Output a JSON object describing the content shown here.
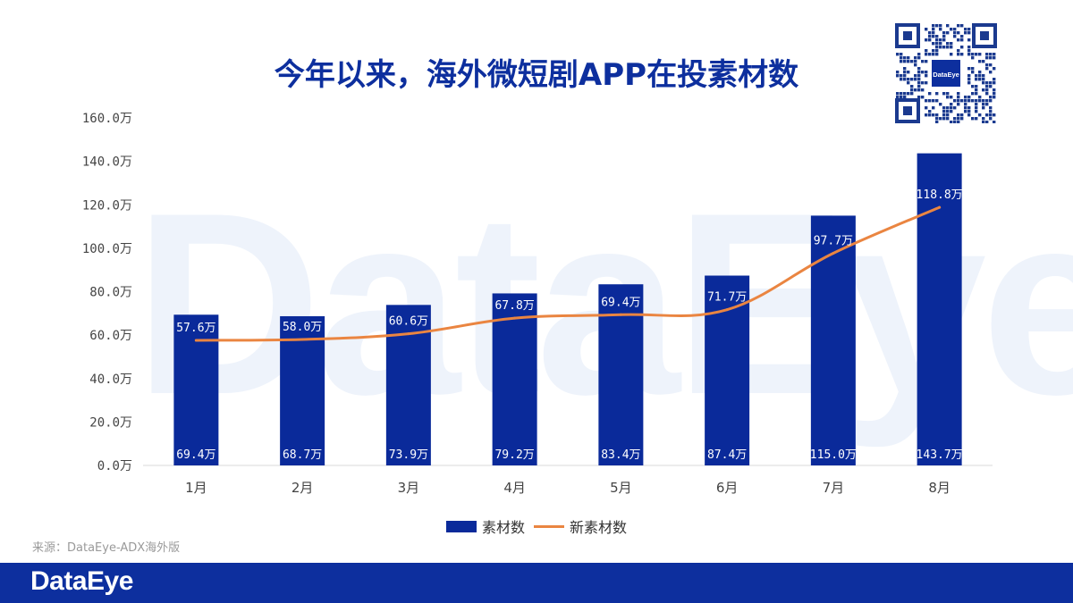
{
  "page": {
    "title": "今年以来，海外微短剧APP在投素材数",
    "watermark_text": "DataEye",
    "qr_badge_text": "DataEye",
    "source_text": "来源：DataEye-ADX海外版",
    "footer_brand": "DataEye"
  },
  "colors": {
    "title": "#0d2f9e",
    "bar": "#0a2a9a",
    "line": "#ea8541",
    "footer": "#0d2f9e",
    "axis_text": "#444444",
    "watermark": "#eef3fb"
  },
  "chart_data": {
    "type": "bar",
    "title": "今年以来，海外微短剧APP在投素材数",
    "categories": [
      "1月",
      "2月",
      "3月",
      "4月",
      "5月",
      "6月",
      "7月",
      "8月"
    ],
    "ylim": [
      0,
      160
    ],
    "yticks": [
      0,
      20,
      40,
      60,
      80,
      100,
      120,
      140,
      160
    ],
    "ytick_labels": [
      "0.0万",
      "20.0万",
      "40.0万",
      "60.0万",
      "80.0万",
      "100.0万",
      "120.0万",
      "140.0万",
      "160.0万"
    ],
    "grid": false,
    "legend_position": "bottom",
    "series": [
      {
        "name": "素材数",
        "kind": "bar",
        "values": [
          69.4,
          68.7,
          73.9,
          79.2,
          83.4,
          87.4,
          115.0,
          143.7
        ],
        "labels": [
          "69.4万",
          "68.7万",
          "73.9万",
          "79.2万",
          "83.4万",
          "87.4万",
          "115.0万",
          "143.7万"
        ]
      },
      {
        "name": "新素材数",
        "kind": "line",
        "values": [
          57.6,
          58.0,
          60.6,
          67.8,
          69.4,
          71.7,
          97.7,
          118.8
        ],
        "labels": [
          "57.6万",
          "58.0万",
          "60.6万",
          "67.8万",
          "69.4万",
          "71.7万",
          "97.7万",
          "118.8万"
        ]
      }
    ]
  }
}
